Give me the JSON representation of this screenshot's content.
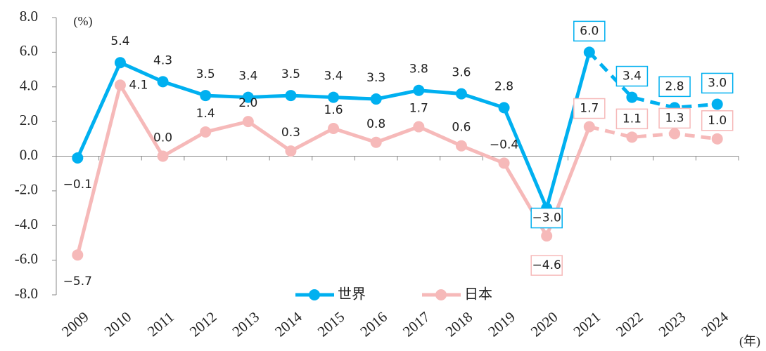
{
  "chart_data": {
    "type": "line",
    "y_unit_label": "(%)",
    "x_unit_label": "(年)",
    "categories": [
      "2009",
      "2010",
      "2011",
      "2012",
      "2013",
      "2014",
      "2015",
      "2016",
      "2017",
      "2018",
      "2019",
      "2020",
      "2021",
      "2022",
      "2023",
      "2024"
    ],
    "series": [
      {
        "name": "世界",
        "color": "#00b0f0",
        "values": [
          -0.1,
          5.4,
          4.3,
          3.5,
          3.4,
          3.5,
          3.4,
          3.3,
          3.8,
          3.6,
          2.8,
          -3.0,
          6.0,
          3.4,
          2.8,
          3.0
        ],
        "value_labels": [
          "−0.1",
          "5.4",
          "4.3",
          "3.5",
          "3.4",
          "3.5",
          "3.4",
          "3.3",
          "3.8",
          "3.6",
          "2.8",
          "−3.0",
          "6.0",
          "3.4",
          "2.8",
          "3.0"
        ]
      },
      {
        "name": "日本",
        "color": "#f6b9b9",
        "values": [
          -5.7,
          4.1,
          0.0,
          1.4,
          2.0,
          0.3,
          1.6,
          0.8,
          1.7,
          0.6,
          -0.4,
          -4.6,
          1.7,
          1.1,
          1.3,
          1.0
        ],
        "value_labels": [
          "−5.7",
          "4.1",
          "0.0",
          "1.4",
          "2.0",
          "0.3",
          "1.6",
          "0.8",
          "1.7",
          "0.6",
          "−0.4",
          "−4.6",
          "1.7",
          "1.1",
          "1.3",
          "1.0"
        ]
      }
    ],
    "dashed_from": "2022",
    "boxed_from": "2020",
    "ylim": [
      -8,
      8
    ],
    "yticks": [
      {
        "value": -8,
        "label": "-8.0"
      },
      {
        "value": -6,
        "label": "-6.0"
      },
      {
        "value": -4,
        "label": "-4.0"
      },
      {
        "value": -2,
        "label": "-2.0"
      },
      {
        "value": 0,
        "label": "0.0"
      },
      {
        "value": 2,
        "label": "2.0"
      },
      {
        "value": 4,
        "label": "4.0"
      },
      {
        "value": 6,
        "label": "6.0"
      },
      {
        "value": 8,
        "label": "8.0"
      }
    ],
    "grid": false,
    "legend": "bottom"
  }
}
